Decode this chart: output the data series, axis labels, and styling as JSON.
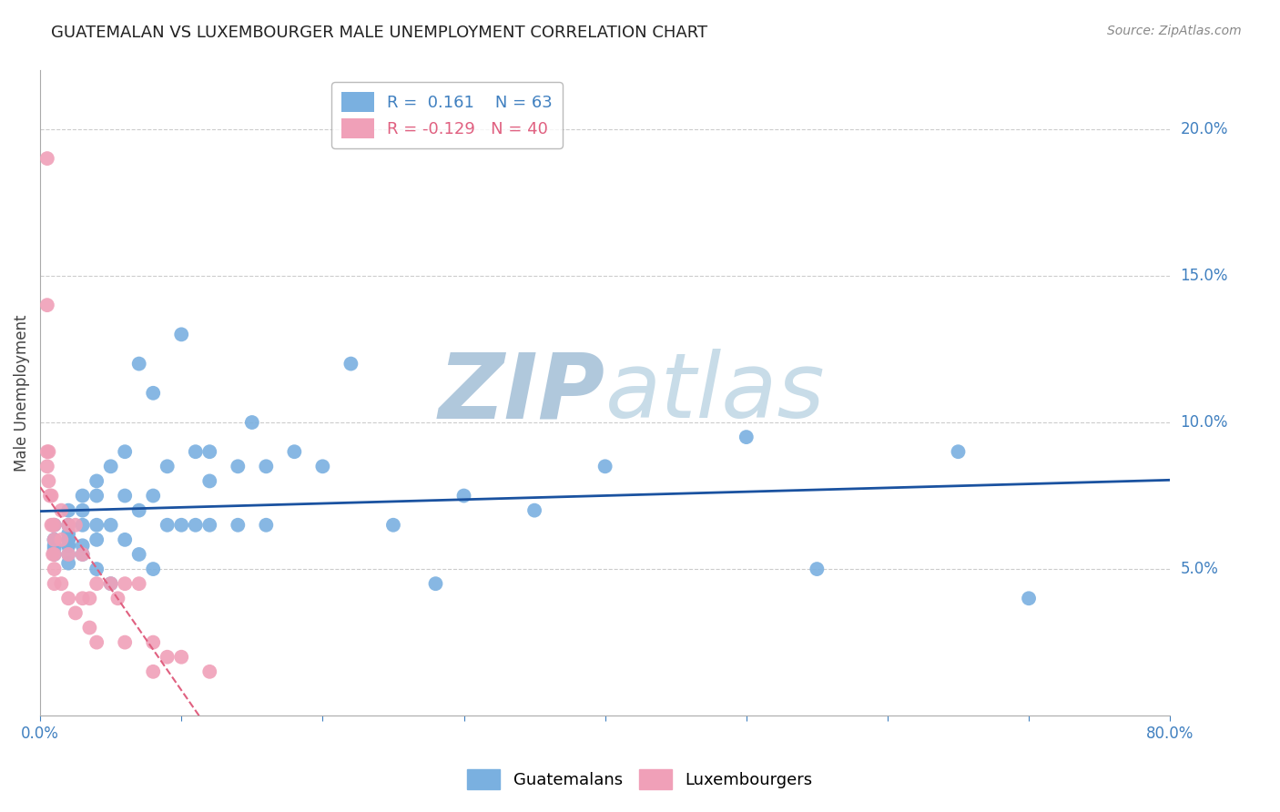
{
  "title": "GUATEMALAN VS LUXEMBOURGER MALE UNEMPLOYMENT CORRELATION CHART",
  "source": "Source: ZipAtlas.com",
  "ylabel": "Male Unemployment",
  "xlim": [
    0.0,
    0.8
  ],
  "ylim": [
    0.0,
    0.22
  ],
  "yticks": [
    0.05,
    0.1,
    0.15,
    0.2
  ],
  "ytick_labels": [
    "5.0%",
    "10.0%",
    "15.0%",
    "20.0%"
  ],
  "xticks": [
    0.0,
    0.1,
    0.2,
    0.3,
    0.4,
    0.5,
    0.6,
    0.7,
    0.8
  ],
  "guatemalan_color": "#7ab0e0",
  "luxembourger_color": "#f0a0b8",
  "guatemalan_line_color": "#1a52a0",
  "luxembourger_line_color": "#e06080",
  "guatemalan_R": 0.161,
  "guatemalan_N": 63,
  "luxembourger_R": -0.129,
  "luxembourger_N": 40,
  "background_color": "#ffffff",
  "watermark_zip": "ZIP",
  "watermark_atlas": "atlas",
  "watermark_color": "#d8e8f0",
  "guatemalan_x": [
    0.01,
    0.01,
    0.01,
    0.01,
    0.01,
    0.01,
    0.02,
    0.02,
    0.02,
    0.02,
    0.02,
    0.02,
    0.02,
    0.02,
    0.02,
    0.03,
    0.03,
    0.03,
    0.03,
    0.03,
    0.04,
    0.04,
    0.04,
    0.04,
    0.04,
    0.05,
    0.05,
    0.05,
    0.06,
    0.06,
    0.06,
    0.07,
    0.07,
    0.07,
    0.08,
    0.08,
    0.08,
    0.09,
    0.09,
    0.1,
    0.1,
    0.11,
    0.11,
    0.12,
    0.12,
    0.12,
    0.14,
    0.14,
    0.15,
    0.16,
    0.16,
    0.18,
    0.2,
    0.22,
    0.25,
    0.28,
    0.3,
    0.35,
    0.4,
    0.5,
    0.55,
    0.65,
    0.7
  ],
  "guatemalan_y": [
    0.06,
    0.065,
    0.055,
    0.06,
    0.058,
    0.057,
    0.062,
    0.06,
    0.058,
    0.055,
    0.052,
    0.07,
    0.065,
    0.06,
    0.058,
    0.075,
    0.07,
    0.065,
    0.058,
    0.055,
    0.08,
    0.075,
    0.065,
    0.06,
    0.05,
    0.085,
    0.065,
    0.045,
    0.09,
    0.075,
    0.06,
    0.12,
    0.07,
    0.055,
    0.11,
    0.075,
    0.05,
    0.085,
    0.065,
    0.13,
    0.065,
    0.09,
    0.065,
    0.09,
    0.08,
    0.065,
    0.085,
    0.065,
    0.1,
    0.085,
    0.065,
    0.09,
    0.085,
    0.12,
    0.065,
    0.045,
    0.075,
    0.07,
    0.085,
    0.095,
    0.05,
    0.09,
    0.04
  ],
  "luxembourger_x": [
    0.005,
    0.005,
    0.005,
    0.005,
    0.006,
    0.006,
    0.007,
    0.008,
    0.008,
    0.009,
    0.009,
    0.01,
    0.01,
    0.01,
    0.01,
    0.01,
    0.015,
    0.015,
    0.015,
    0.02,
    0.02,
    0.02,
    0.025,
    0.025,
    0.03,
    0.03,
    0.035,
    0.035,
    0.04,
    0.04,
    0.05,
    0.055,
    0.06,
    0.06,
    0.07,
    0.08,
    0.08,
    0.09,
    0.1,
    0.12
  ],
  "luxembourger_y": [
    0.19,
    0.14,
    0.09,
    0.085,
    0.09,
    0.08,
    0.075,
    0.075,
    0.065,
    0.065,
    0.055,
    0.065,
    0.06,
    0.055,
    0.05,
    0.045,
    0.07,
    0.06,
    0.045,
    0.065,
    0.055,
    0.04,
    0.065,
    0.035,
    0.055,
    0.04,
    0.04,
    0.03,
    0.045,
    0.025,
    0.045,
    0.04,
    0.045,
    0.025,
    0.045,
    0.025,
    0.015,
    0.02,
    0.02,
    0.015
  ]
}
